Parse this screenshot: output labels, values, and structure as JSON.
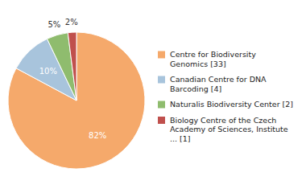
{
  "chart_data": {
    "type": "pie",
    "categories": [
      "Centre for Biodiversity\nGenomics [33]",
      "Canadian Centre for DNA\nBarcoding [4]",
      "Naturalis Biodiversity Center [2]",
      "Biology Centre of the Czech\nAcademy of Sciences, Institute\n... [1]"
    ],
    "values": [
      82,
      10,
      5,
      2
    ],
    "value_labels": [
      "82%",
      "10%",
      "5%",
      "2%"
    ],
    "colors": [
      "#f5a96b",
      "#a8c4dc",
      "#8fbc6e",
      "#c0504d"
    ],
    "data_labels": true,
    "legend": "right"
  }
}
